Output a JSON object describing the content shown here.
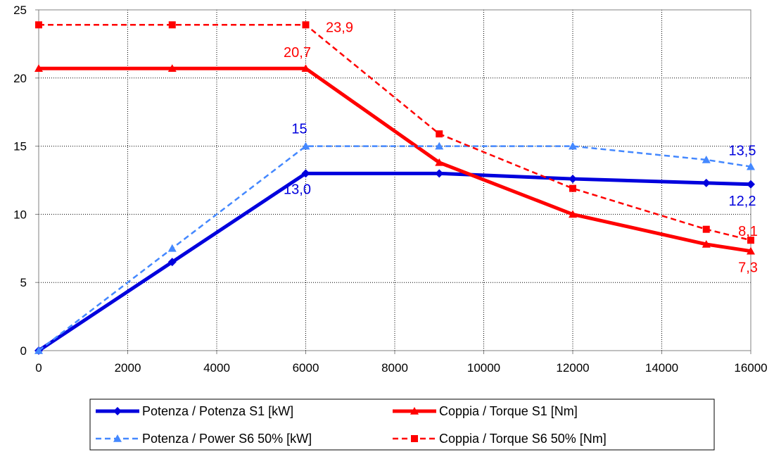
{
  "chart_data": {
    "type": "line",
    "title": "",
    "xlabel": "",
    "ylabel": "",
    "xlim": [
      0,
      16000
    ],
    "ylim": [
      0,
      25
    ],
    "x_ticks": [
      "0",
      "2000",
      "4000",
      "6000",
      "8000",
      "10000",
      "12000",
      "14000",
      "16000"
    ],
    "y_ticks": [
      "0",
      "5",
      "10",
      "15",
      "20",
      "25"
    ],
    "grid": true,
    "legend_position": "bottom",
    "series": [
      {
        "name": "Potenza / Potenza S1 [kW]",
        "color": "#0000dd",
        "style": "solid",
        "marker": "diamond",
        "points": [
          [
            0,
            0
          ],
          [
            3000,
            6.5
          ],
          [
            6000,
            13.0
          ],
          [
            9000,
            13.0
          ],
          [
            12000,
            12.6
          ],
          [
            15000,
            12.3
          ],
          [
            16000,
            12.2
          ]
        ]
      },
      {
        "name": "Coppia / Torque S1 [Nm]",
        "color": "#ff0000",
        "style": "solid",
        "marker": "triangle",
        "points": [
          [
            0,
            20.7
          ],
          [
            3000,
            20.7
          ],
          [
            6000,
            20.7
          ],
          [
            9000,
            13.8
          ],
          [
            12000,
            10.0
          ],
          [
            15000,
            7.8
          ],
          [
            16000,
            7.3
          ]
        ]
      },
      {
        "name": "Potenza / Power S6 50% [kW]",
        "color": "#4488ff",
        "style": "dashed",
        "marker": "triangle",
        "points": [
          [
            0,
            0
          ],
          [
            3000,
            7.5
          ],
          [
            6000,
            15
          ],
          [
            9000,
            15
          ],
          [
            12000,
            15
          ],
          [
            15000,
            14
          ],
          [
            16000,
            13.5
          ]
        ]
      },
      {
        "name": "Coppia / Torque S6 50% [Nm]",
        "color": "#ff0000",
        "style": "dashed",
        "marker": "square",
        "points": [
          [
            0,
            23.9
          ],
          [
            3000,
            23.9
          ],
          [
            6000,
            23.9
          ],
          [
            9000,
            15.9
          ],
          [
            12000,
            11.9
          ],
          [
            15000,
            8.9
          ],
          [
            16000,
            8.1
          ]
        ]
      }
    ],
    "annotations": [
      {
        "text": "23,9",
        "x": 6000,
        "y": 23.9,
        "color": "#ff0000"
      },
      {
        "text": "20,7",
        "x": 6000,
        "y": 20.7,
        "color": "#ff0000"
      },
      {
        "text": "15",
        "x": 6000,
        "y": 15,
        "color": "#0000dd"
      },
      {
        "text": "13,0",
        "x": 6000,
        "y": 13.0,
        "color": "#0000dd"
      },
      {
        "text": "13,5",
        "x": 16000,
        "y": 13.5,
        "color": "#0000dd"
      },
      {
        "text": "12,2",
        "x": 16000,
        "y": 12.2,
        "color": "#0000dd"
      },
      {
        "text": "8,1",
        "x": 16000,
        "y": 8.1,
        "color": "#ff0000"
      },
      {
        "text": "7,3",
        "x": 16000,
        "y": 7.3,
        "color": "#ff0000"
      }
    ]
  }
}
